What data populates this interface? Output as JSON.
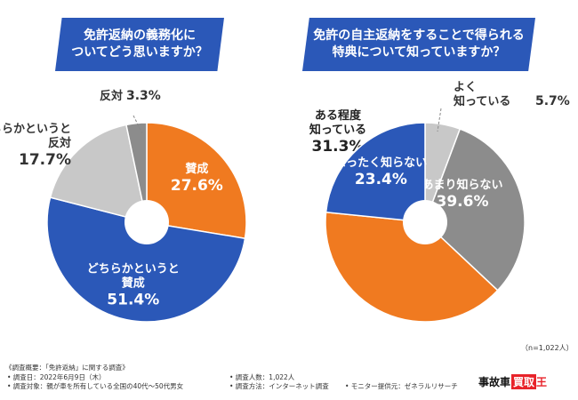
{
  "chart1": {
    "title_line1": "免許返納の義務化に",
    "title_line2": "ついてどう思いますか？"
  },
  "chart2": {
    "title_line1": "免許の自主返納をすることで得られる",
    "title_line2": "特典について知っていますか？"
  },
  "chart_data": [
    {
      "type": "pie",
      "title": "免許返納の義務化についてどう思いますか？",
      "series": [
        {
          "label_lines": [
            "賛成"
          ],
          "value": 27.6,
          "display": "27.6%",
          "color": "#f07a20",
          "label_color": "#ffffff"
        },
        {
          "label_lines": [
            "どちらかというと",
            "賛成"
          ],
          "value": 51.4,
          "display": "51.4%",
          "color": "#2b58b8",
          "label_color": "#ffffff"
        },
        {
          "label_lines": [
            "どちらかというと",
            "反対"
          ],
          "value": 17.7,
          "display": "17.7%",
          "color": "#c8c8c8",
          "label_color": "#333333"
        },
        {
          "label_lines": [
            "反対"
          ],
          "value": 3.3,
          "display": "3.3%",
          "color": "#8c8c8c",
          "label_color": "#333333"
        }
      ]
    },
    {
      "type": "pie",
      "title": "免許の自主返納をすることで得られる特典について知っていますか？",
      "series": [
        {
          "label_lines": [
            "よく",
            "知っている"
          ],
          "value": 5.7,
          "display": "5.7%",
          "color": "#c8c8c8",
          "label_color": "#333333"
        },
        {
          "label_lines": [
            "ある程度",
            "知っている"
          ],
          "value": 31.3,
          "display": "31.3%",
          "color": "#8c8c8c",
          "label_color": "#222222"
        },
        {
          "label_lines": [
            "あまり知らない"
          ],
          "value": 39.6,
          "display": "39.6%",
          "color": "#f07a20",
          "label_color": "#ffffff"
        },
        {
          "label_lines": [
            "まったく知らない"
          ],
          "value": 23.4,
          "display": "23.4%",
          "color": "#2b58b8",
          "label_color": "#ffffff"
        }
      ]
    }
  ],
  "sample_note": "（n=1,022人）",
  "footer": {
    "survey_name": "《調査概要：「免許返納」に関する調査》",
    "survey_date": "• 調査日：2022年6月9日（木）",
    "survey_target": "• 調査対象：親が車を所有している全国の40代〜50代男女",
    "respondents": "• 調査人数：1,022人",
    "method": "• 調査方法：インターネット調査",
    "panel": "• モニター提供元：ゼネラルリサーチ"
  },
  "logo": {
    "part1": "事故車",
    "part2": "買取",
    "part3": "王"
  }
}
